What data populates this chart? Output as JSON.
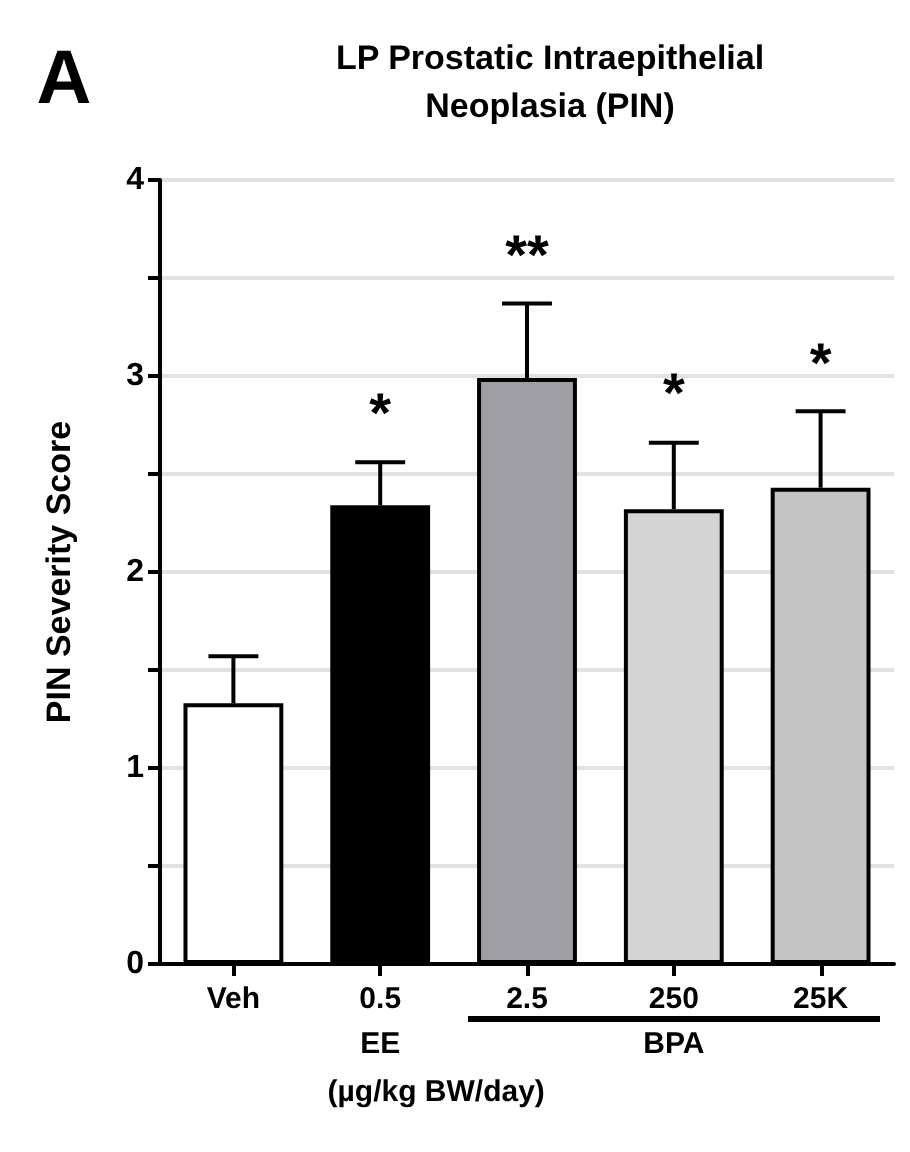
{
  "chart_data": {
    "type": "bar",
    "title": "LP Prostatic Intraepithelial\nNeoplasia (PIN)",
    "ylabel": "PIN Severity Score",
    "categories": [
      "Veh",
      "0.5",
      "2.5",
      "250",
      "25K"
    ],
    "values": [
      1.33,
      2.34,
      2.99,
      2.32,
      2.43
    ],
    "colors": [
      "#ffffff",
      "#000000",
      "#9e9ea4",
      "#d4d4d4",
      "#c4c4c4"
    ],
    "errors": [
      [
        1.33,
        1.57
      ],
      [
        2.34,
        2.56
      ],
      [
        2.99,
        3.37
      ],
      [
        2.32,
        2.66
      ],
      [
        2.43,
        2.82
      ]
    ],
    "ylim": [
      0,
      4
    ],
    "yticks": [
      0,
      {
        "value": 0.5,
        "label": null
      },
      1,
      {
        "value": 1.5,
        "label": null
      },
      2,
      {
        "value": 2.5,
        "label": null
      },
      3,
      {
        "value": 3.5,
        "label": null
      },
      4
    ],
    "grid": "y",
    "annotations": [
      "A",
      "EE",
      "BPA",
      "(µg/kg BW/day)",
      {
        "text": "*",
        "x": "0.5",
        "y": 2.56
      },
      {
        "text": "**",
        "x": "2.5",
        "y": 3.37
      },
      {
        "text": "*",
        "x": "250",
        "y": 2.66
      },
      {
        "text": "*",
        "x": "25K",
        "y": 2.82
      }
    ]
  }
}
